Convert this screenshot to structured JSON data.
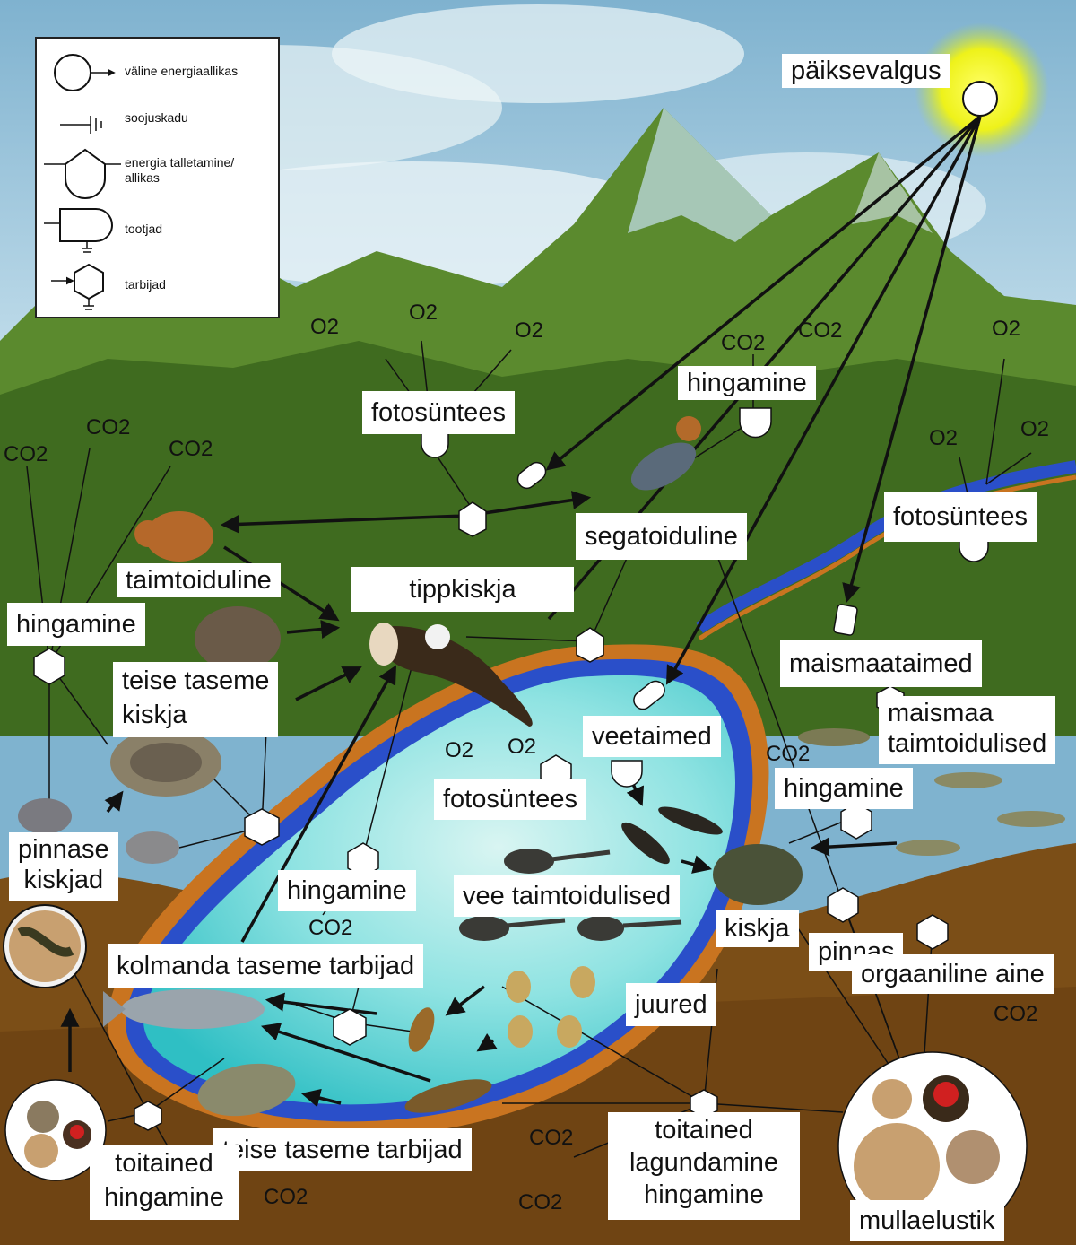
{
  "legend": {
    "items": [
      {
        "icon": "external-energy-source-icon",
        "text": "väline energiaallikas"
      },
      {
        "icon": "heat-loss-icon",
        "text": "soojuskadu"
      },
      {
        "icon": "energy-storage-icon",
        "text": "energia talletamine/\nallikas"
      },
      {
        "icon": "producers-icon",
        "text": "tootjad"
      },
      {
        "icon": "consumers-icon",
        "text": "tarbijad"
      }
    ]
  },
  "labels": {
    "sun": "päiksevalgus",
    "photo_forest": "fotosüntees",
    "resp_bird": "hingamine",
    "photo_right": "fotosüntees",
    "omnivore": "segatoiduline",
    "herbivore": "taimtoiduline",
    "apex": "tippkiskja",
    "resp_left": "hingamine",
    "secondary_predator_1": "teise taseme",
    "secondary_predator_2": "kiskja",
    "land_plants": "maismaataimed",
    "land_herbivores_1": "maismaa",
    "land_herbivores_2": "taimtoidulised",
    "aquatic_plants": "veetaimed",
    "photo_water": "fotosüntees",
    "resp_right": "hingamine",
    "soil_predators_1": "pinnase",
    "soil_predators_2": "kiskjad",
    "resp_water": "hingamine",
    "aquatic_herbivores": "vee taimtoidulised",
    "predator": "kiskja",
    "soil": "pinnas",
    "organic_matter": "orgaaniline aine",
    "tertiary_consumers": "kolmanda taseme tarbijad",
    "roots": "juured",
    "secondary_consumers": "teise taseme tarbijad",
    "nutrients_left_1": "toitained",
    "nutrients_left_2": "hingamine",
    "nutrients_mid_1": "toitained",
    "nutrients_mid_2": "lagundamine",
    "nutrients_mid_3": "hingamine",
    "soil_life": "mullaelustik"
  },
  "gases": {
    "g1": "O2",
    "g2": "O2",
    "g3": "O2",
    "g4": "CO2",
    "g5": "CO2",
    "g6": "O2",
    "g7": "CO2",
    "g8": "CO2",
    "g9": "CO2",
    "g10": "O2",
    "g11": "O2",
    "g12": "O2",
    "g13": "O2",
    "g14": "CO2",
    "g15": "CO2",
    "g16": "CO2",
    "g17": "CO2",
    "g18": "CO2",
    "g19": "CO2"
  },
  "colors": {
    "sky": "#7fb3cf",
    "mountain": "#4f7a2a",
    "soil": "#8a5a1e",
    "water": "#5fd0d6",
    "river": "#2a4fc9",
    "bank": "#d07a1e",
    "sun": "#f4f21a"
  }
}
